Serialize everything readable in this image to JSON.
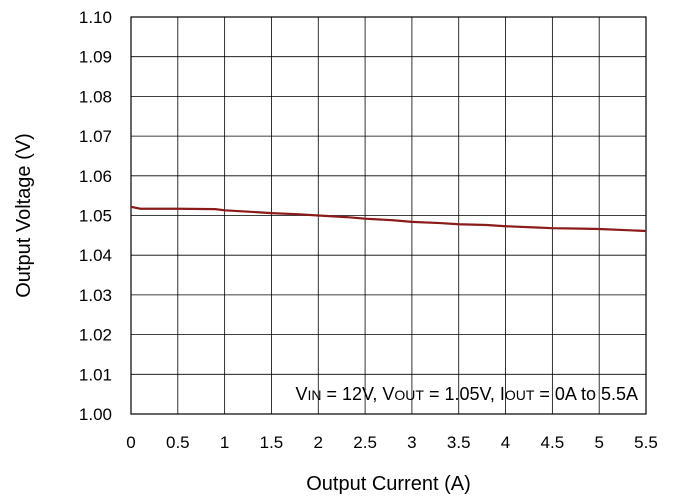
{
  "chart_data": {
    "type": "line",
    "title": "",
    "xlabel": "Output Current (A)",
    "ylabel": "Output Voltage (V)",
    "xlim": [
      0,
      5.5
    ],
    "ylim": [
      1.0,
      1.1
    ],
    "xticks": [
      "0",
      "0.5",
      "1",
      "1.5",
      "2",
      "2.5",
      "3",
      "3.5",
      "4",
      "4.5",
      "5",
      "5.5"
    ],
    "yticks": [
      "1.00",
      "1.01",
      "1.02",
      "1.03",
      "1.04",
      "1.05",
      "1.06",
      "1.07",
      "1.08",
      "1.09",
      "1.10"
    ],
    "grid": true,
    "annotation": {
      "parts": [
        {
          "text": "V",
          "sub": false
        },
        {
          "text": "IN",
          "sub": true
        },
        {
          "text": " = 12V, V",
          "sub": false
        },
        {
          "text": "OUT",
          "sub": true
        },
        {
          "text": " = 1.05V, I",
          "sub": false
        },
        {
          "text": "OUT",
          "sub": true
        },
        {
          "text": " = 0A to 5.5A",
          "sub": false
        }
      ]
    },
    "series": [
      {
        "color": "#8b1a1a",
        "x": [
          0,
          0.1,
          0.5,
          0.9,
          1.0,
          1.3,
          1.5,
          1.8,
          2.0,
          2.3,
          2.5,
          2.8,
          3.0,
          3.3,
          3.5,
          3.8,
          4.0,
          4.3,
          4.5,
          4.8,
          5.0,
          5.3,
          5.5
        ],
        "y": [
          1.0522,
          1.0517,
          1.0517,
          1.0516,
          1.0513,
          1.0509,
          1.0506,
          1.0503,
          1.05,
          1.0496,
          1.0492,
          1.0488,
          1.0484,
          1.0481,
          1.0478,
          1.0476,
          1.0473,
          1.047,
          1.0468,
          1.0467,
          1.0466,
          1.0463,
          1.0461
        ]
      }
    ]
  }
}
